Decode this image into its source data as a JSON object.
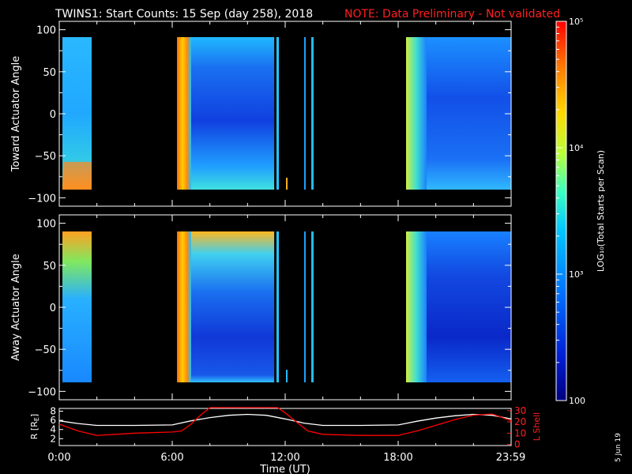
{
  "header": {
    "title": "TWINS1: Start Counts: 15 Sep (day 258), 2018",
    "note": "NOTE: Data Preliminary - Not validated"
  },
  "side_date": "5 Jun 19",
  "colorbar": {
    "label": "LOG₁₀(Total Starts per Scan)",
    "scale": "log",
    "ticks": [
      "10⁵",
      "10⁴",
      "10³",
      "100"
    ],
    "colors": [
      "#ff0000",
      "#ff7a00",
      "#ffd800",
      "#b8ff3a",
      "#3affc2",
      "#00c8ff",
      "#0070ff",
      "#0020d8",
      "#00008a"
    ]
  },
  "chart_data": [
    {
      "type": "heatmap",
      "ylabel": "Toward Actuator Angle",
      "ylim": [
        -110,
        110
      ],
      "y_ticks": [
        "100",
        "50",
        "0",
        "−50",
        "−100"
      ],
      "x_ticks": [
        "0:00",
        "6:00",
        "12:00",
        "18:00",
        "23:59"
      ],
      "data_blocks_ut": [
        [
          "0:00",
          "1:25"
        ],
        [
          "6:15",
          "11:35"
        ],
        [
          "12:10",
          "12:15"
        ],
        [
          "12:50",
          "12:55"
        ],
        [
          "13:10",
          "13:20"
        ],
        [
          "18:35",
          "23:59"
        ]
      ]
    },
    {
      "type": "heatmap",
      "ylabel": "Away Actuator Angle",
      "ylim": [
        -110,
        110
      ],
      "y_ticks": [
        "100",
        "50",
        "0",
        "−50",
        "−100"
      ],
      "x_ticks": [
        "0:00",
        "6:00",
        "12:00",
        "18:00",
        "23:59"
      ],
      "data_blocks_ut": [
        [
          "0:00",
          "1:25"
        ],
        [
          "6:15",
          "11:35"
        ],
        [
          "12:10",
          "12:15"
        ],
        [
          "12:50",
          "12:55"
        ],
        [
          "13:10",
          "13:20"
        ],
        [
          "18:35",
          "23:59"
        ]
      ]
    },
    {
      "type": "line",
      "xlabel": "Time (UT)",
      "ylabel": "R [R_E]",
      "ylabel_right": "L Shell",
      "y_ticks_left": [
        "8",
        "6",
        "4",
        "2"
      ],
      "y_ticks_right": [
        "30",
        "20",
        "10",
        "0"
      ],
      "x_ticks": [
        "0:00",
        "6:00",
        "12:00",
        "18:00",
        "23:59"
      ],
      "series": [
        {
          "name": "R [R_E]",
          "color": "#ffffff",
          "x_hours": [
            0,
            1,
            2,
            4,
            6,
            7,
            8,
            9,
            10,
            11,
            12,
            13,
            14,
            16,
            18,
            19,
            20,
            21,
            22,
            23,
            24
          ],
          "values": [
            5.9,
            5.3,
            4.9,
            4.9,
            5.0,
            5.9,
            6.6,
            7.1,
            7.3,
            7.1,
            6.3,
            5.4,
            4.9,
            4.9,
            5.0,
            5.8,
            6.5,
            7.0,
            7.3,
            7.1,
            6.3
          ]
        },
        {
          "name": "L Shell",
          "color": "#ff0000",
          "x_hours": [
            0,
            1,
            2,
            4,
            6,
            6.5,
            7,
            7.5,
            8,
            11.6,
            12,
            12.6,
            13.2,
            14,
            16,
            18,
            19,
            20,
            21,
            22,
            23,
            24
          ],
          "values": [
            18,
            12,
            8,
            10,
            11,
            12,
            18,
            26,
            33,
            33,
            28,
            20,
            12,
            9,
            8,
            8,
            12,
            17,
            22,
            26,
            27,
            21
          ]
        }
      ]
    }
  ]
}
